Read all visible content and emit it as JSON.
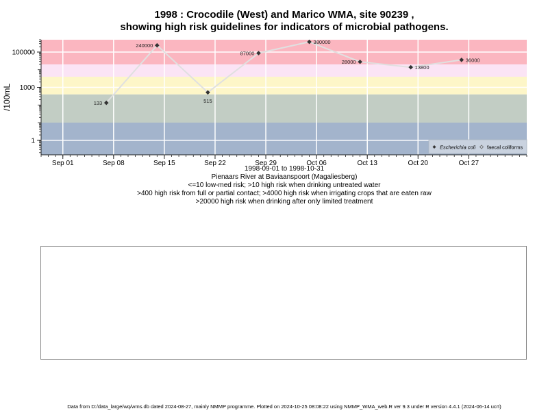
{
  "title_line1": "1998 : Crocodile (West) and Marico WMA, site 90239 ,",
  "title_line2": "showing high risk guidelines for indicators of microbial pathogens.",
  "below": {
    "date_range": "1998-09-01 to 1998-10-31",
    "site_name": "Pienaars River at Baviaanspoort (Magaliesberg)",
    "guideline1": "<=10 low-med risk; >10 high risk when drinking untreated water",
    "guideline2": ">400 high risk from full or partial contact; >4000 high risk when irrigating crops that are eaten raw",
    "guideline3": ">20000 high risk when drinking after only limited treatment"
  },
  "footer": "Data from D:/data_large/wq/wms.db dated 2024-08-27, mainly NMMP programme. Plotted on 2024-10-25 08:08:22 using NMMP_WMA_web.R ver 9.3 under R version 4.4.1 (2024-06-14 ucrt)",
  "chart_data": {
    "type": "line",
    "ylabel": "/100mL",
    "y_scale": "log10",
    "ylim": [
      0.15,
      500000
    ],
    "x_range": [
      "1998-08-29",
      "1998-11-04"
    ],
    "x_ticks": [
      {
        "date": "1998-09-01",
        "label": "Sep 01"
      },
      {
        "date": "1998-09-08",
        "label": "Sep 08"
      },
      {
        "date": "1998-09-15",
        "label": "Sep 15"
      },
      {
        "date": "1998-09-22",
        "label": "Sep 22"
      },
      {
        "date": "1998-09-29",
        "label": "Sep 29"
      },
      {
        "date": "1998-10-06",
        "label": "Oct 06"
      },
      {
        "date": "1998-10-13",
        "label": "Oct 13"
      },
      {
        "date": "1998-10-20",
        "label": "Oct 20"
      },
      {
        "date": "1998-10-27",
        "label": "Oct 27"
      }
    ],
    "y_ticks": [
      {
        "value": 1,
        "label": "1"
      },
      {
        "value": 1000,
        "label": "1000"
      },
      {
        "value": 100000,
        "label": "100000"
      }
    ],
    "grid": true,
    "risk_bands": [
      {
        "from": 0.15,
        "to": 10,
        "color": "#a3b4cc"
      },
      {
        "from": 10,
        "to": 400,
        "color": "#c2cdc4"
      },
      {
        "from": 400,
        "to": 4000,
        "color": "#fdf6c8"
      },
      {
        "from": 4000,
        "to": 20000,
        "color": "#fbe4f5"
      },
      {
        "from": 20000,
        "to": 500000,
        "color": "#fbb6c0"
      }
    ],
    "series": [
      {
        "name": "Escherichia coli",
        "color": "#333333",
        "line_color": "#e0e0e0",
        "points": [
          {
            "x": "1998-09-07",
            "y": 133,
            "label": "133",
            "label_pos": "left"
          },
          {
            "x": "1998-09-14",
            "y": 240000,
            "label": "240000",
            "label_pos": "left"
          },
          {
            "x": "1998-09-21",
            "y": 515,
            "label": "515",
            "label_pos": "below"
          },
          {
            "x": "1998-09-28",
            "y": 87000,
            "label": "87000",
            "label_pos": "left"
          },
          {
            "x": "1998-10-05",
            "y": 380000,
            "label": "380000",
            "label_pos": "right"
          },
          {
            "x": "1998-10-12",
            "y": 28000,
            "label": "28000",
            "label_pos": "left"
          },
          {
            "x": "1998-10-19",
            "y": 13800,
            "label": "13800",
            "label_pos": "right"
          },
          {
            "x": "1998-10-26",
            "y": 36000,
            "label": "36000",
            "label_pos": "right"
          }
        ]
      }
    ],
    "legend": {
      "position": "bottom-right",
      "entries": [
        "Escherichia coli",
        "faecal coliforms"
      ]
    }
  }
}
